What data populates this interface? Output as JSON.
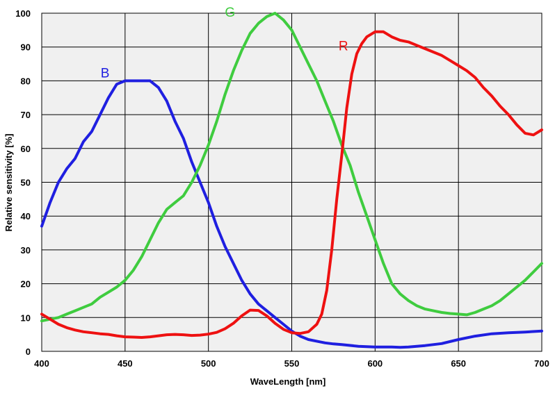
{
  "chart_data": {
    "type": "line",
    "title": "",
    "xlabel": "WaveLength [nm]",
    "ylabel": "Relative sensitivity [%]",
    "xlim": [
      400,
      700
    ],
    "ylim": [
      0,
      100
    ],
    "xticks": [
      400,
      450,
      500,
      550,
      600,
      650,
      700
    ],
    "yticks": [
      0,
      10,
      20,
      30,
      40,
      50,
      60,
      70,
      80,
      90,
      100
    ],
    "grid": true,
    "legend": "inline labels",
    "series": [
      {
        "name": "B",
        "color": "#1f1fe0",
        "x": [
          400,
          405,
          410,
          415,
          420,
          425,
          430,
          435,
          440,
          445,
          450,
          455,
          460,
          465,
          470,
          475,
          480,
          485,
          490,
          495,
          500,
          505,
          510,
          515,
          520,
          525,
          530,
          535,
          540,
          545,
          550,
          555,
          560,
          565,
          570,
          575,
          580,
          590,
          600,
          610,
          615,
          620,
          630,
          640,
          650,
          660,
          670,
          680,
          690,
          700
        ],
        "y": [
          37,
          44,
          50,
          54,
          57,
          62,
          65,
          70,
          75,
          79,
          80,
          80,
          80,
          80,
          78,
          74,
          68,
          63,
          56,
          50,
          44,
          37,
          31,
          26,
          21,
          17,
          14,
          12,
          10,
          8,
          6,
          4.5,
          3.5,
          3,
          2.5,
          2.2,
          2,
          1.5,
          1.3,
          1.3,
          1.2,
          1.3,
          1.7,
          2.3,
          3.5,
          4.5,
          5.2,
          5.5,
          5.7,
          6
        ]
      },
      {
        "name": "G",
        "color": "#3fcc3f",
        "x": [
          400,
          405,
          410,
          415,
          420,
          425,
          430,
          435,
          440,
          445,
          450,
          455,
          460,
          465,
          470,
          475,
          480,
          485,
          490,
          495,
          500,
          505,
          510,
          515,
          520,
          525,
          530,
          535,
          540,
          545,
          550,
          555,
          560,
          565,
          570,
          575,
          580,
          585,
          590,
          595,
          600,
          605,
          610,
          615,
          620,
          625,
          630,
          635,
          640,
          645,
          650,
          655,
          660,
          665,
          670,
          675,
          680,
          685,
          690,
          695,
          700
        ],
        "y": [
          9,
          9.5,
          10,
          11,
          12,
          13,
          14,
          16,
          17.5,
          19,
          21,
          24,
          28,
          33,
          38,
          42,
          44,
          46,
          50,
          55,
          61,
          68,
          76,
          83,
          89,
          94,
          97,
          99,
          100,
          98,
          95,
          90,
          85,
          80,
          74,
          68,
          61,
          55,
          47,
          40,
          33,
          26,
          20,
          17,
          15,
          13.5,
          12.5,
          12,
          11.5,
          11.2,
          11,
          10.8,
          11.5,
          12.5,
          13.5,
          15,
          17,
          19,
          21,
          23.5,
          26
        ]
      },
      {
        "name": "R",
        "color": "#ee1111",
        "x": [
          400,
          405,
          410,
          415,
          420,
          425,
          430,
          435,
          440,
          445,
          450,
          455,
          460,
          465,
          470,
          475,
          480,
          485,
          490,
          495,
          500,
          505,
          510,
          515,
          520,
          525,
          530,
          535,
          540,
          545,
          550,
          555,
          560,
          565,
          568,
          571,
          574,
          577,
          580,
          583,
          586,
          589,
          592,
          595,
          600,
          605,
          610,
          615,
          620,
          625,
          630,
          635,
          640,
          645,
          650,
          655,
          660,
          665,
          670,
          675,
          680,
          685,
          690,
          695,
          700
        ],
        "y": [
          11,
          9.5,
          8,
          7,
          6.3,
          5.8,
          5.5,
          5.2,
          5,
          4.6,
          4.3,
          4.2,
          4.1,
          4.3,
          4.6,
          4.9,
          5,
          4.9,
          4.7,
          4.8,
          5.1,
          5.6,
          6.7,
          8.3,
          10.5,
          12.2,
          12.1,
          10.5,
          8.3,
          6.5,
          5.5,
          5.3,
          5.8,
          8,
          11,
          18,
          30,
          45,
          58,
          72,
          82,
          88,
          91,
          93,
          94.5,
          94.5,
          93,
          92,
          91.5,
          90.5,
          89.5,
          88.5,
          87.5,
          86,
          84.5,
          83,
          81,
          78,
          75.5,
          72.5,
          70,
          67,
          64.5,
          64,
          65.5
        ]
      }
    ],
    "annotations": [
      {
        "text": "B",
        "color": "#1f1fe0",
        "x": 438,
        "y": 81
      },
      {
        "text": "G",
        "color": "#3fcc3f",
        "x": 513,
        "y": 99
      },
      {
        "text": "R",
        "color": "#ee1111",
        "x": 581,
        "y": 89
      }
    ]
  }
}
